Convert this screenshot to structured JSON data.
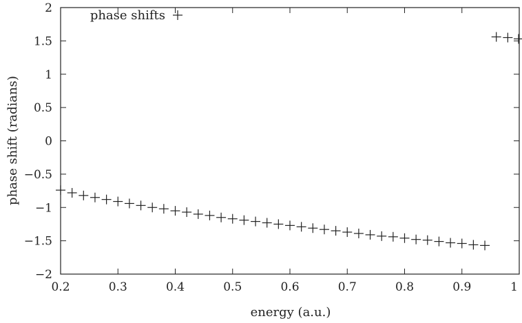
{
  "chart_data": {
    "type": "scatter",
    "xlabel": "energy (a.u.)",
    "ylabel": "phase shift (radians)",
    "xlim": [
      0.2,
      1.0
    ],
    "ylim": [
      -2,
      2
    ],
    "x_ticks": [
      0.2,
      0.3,
      0.4,
      0.5,
      0.6,
      0.7,
      0.8,
      0.9,
      1.0
    ],
    "x_tick_labels": [
      "0.2",
      "0.3",
      "0.4",
      "0.5",
      "0.6",
      "0.7",
      "0.8",
      "0.9",
      "1"
    ],
    "y_ticks": [
      -2,
      -1.5,
      -1,
      -0.5,
      0,
      0.5,
      1,
      1.5,
      2
    ],
    "y_tick_labels": [
      "−2",
      "−1.5",
      "−1",
      "−0.5",
      "0",
      "0.5",
      "1",
      "1.5",
      "2"
    ],
    "grid": false,
    "legend_position": "top-left",
    "series": [
      {
        "name": "phase shifts",
        "marker": "plus",
        "color": "#222222",
        "points": [
          [
            0.2,
            -0.74
          ],
          [
            0.22,
            -0.78
          ],
          [
            0.24,
            -0.82
          ],
          [
            0.26,
            -0.85
          ],
          [
            0.28,
            -0.88
          ],
          [
            0.3,
            -0.91
          ],
          [
            0.32,
            -0.94
          ],
          [
            0.34,
            -0.97
          ],
          [
            0.36,
            -1.0
          ],
          [
            0.38,
            -1.02
          ],
          [
            0.4,
            -1.05
          ],
          [
            0.42,
            -1.07
          ],
          [
            0.44,
            -1.1
          ],
          [
            0.46,
            -1.12
          ],
          [
            0.48,
            -1.15
          ],
          [
            0.5,
            -1.17
          ],
          [
            0.52,
            -1.19
          ],
          [
            0.54,
            -1.21
          ],
          [
            0.56,
            -1.23
          ],
          [
            0.58,
            -1.25
          ],
          [
            0.6,
            -1.27
          ],
          [
            0.62,
            -1.29
          ],
          [
            0.64,
            -1.31
          ],
          [
            0.66,
            -1.33
          ],
          [
            0.68,
            -1.35
          ],
          [
            0.7,
            -1.37
          ],
          [
            0.72,
            -1.39
          ],
          [
            0.74,
            -1.41
          ],
          [
            0.76,
            -1.43
          ],
          [
            0.78,
            -1.44
          ],
          [
            0.8,
            -1.46
          ],
          [
            0.82,
            -1.48
          ],
          [
            0.84,
            -1.49
          ],
          [
            0.86,
            -1.51
          ],
          [
            0.88,
            -1.53
          ],
          [
            0.9,
            -1.54
          ],
          [
            0.92,
            -1.56
          ],
          [
            0.94,
            -1.57
          ],
          [
            0.96,
            1.56
          ],
          [
            0.98,
            1.55
          ],
          [
            1.0,
            1.53
          ]
        ]
      }
    ]
  }
}
